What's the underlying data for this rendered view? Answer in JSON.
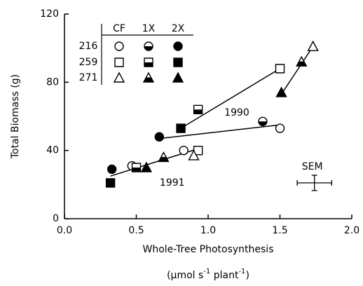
{
  "chart_data": {
    "type": "scatter",
    "y_label": "Total Biomass (g)",
    "x_label": "Whole-Tree Photosynthesis",
    "x_units": {
      "open": "(μmol s",
      "sup1": "-1",
      "mid": " plant",
      "sup2": "-1",
      "close": ")"
    },
    "xlim": [
      0,
      2.0
    ],
    "ylim": [
      0,
      120
    ],
    "xticks": [
      {
        "value": 0,
        "label": "0.0"
      },
      {
        "value": 0.5,
        "label": "0.5"
      },
      {
        "value": 1.0,
        "label": "1.0"
      },
      {
        "value": 1.5,
        "label": "1.5"
      },
      {
        "value": 2.0,
        "label": "2.0"
      }
    ],
    "yticks": [
      0,
      40,
      80,
      120
    ],
    "color": "#000000",
    "legend": {
      "columns": [
        "CF",
        "1X",
        "2X"
      ],
      "fills": [
        "open",
        "half",
        "filled"
      ],
      "corner": "top-left"
    },
    "rows": [
      {
        "name": "216",
        "shape": "circle",
        "series": [
          {
            "x": [
              0.47,
              0.83,
              1.5
            ],
            "y": [
              31,
              40,
              53
            ]
          },
          {
            "x": [
              1.38
            ],
            "y": [
              57
            ]
          },
          {
            "x": [
              0.33,
              0.66
            ],
            "y": [
              29,
              48
            ]
          }
        ]
      },
      {
        "name": "259",
        "shape": "square",
        "series": [
          {
            "x": [
              0.93,
              1.5
            ],
            "y": [
              40,
              88
            ]
          },
          {
            "x": [
              0.5,
              0.93
            ],
            "y": [
              30,
              64
            ]
          },
          {
            "x": [
              0.32,
              0.81
            ],
            "y": [
              21,
              53
            ]
          }
        ]
      },
      {
        "name": "271",
        "shape": "triangle",
        "series": [
          {
            "x": [
              0.9,
              1.73
            ],
            "y": [
              37,
              101
            ]
          },
          {
            "x": [
              0.69,
              1.65
            ],
            "y": [
              36,
              92
            ]
          },
          {
            "x": [
              0.57,
              1.51
            ],
            "y": [
              30,
              74
            ]
          }
        ]
      }
    ],
    "fit_lines": [
      {
        "x": [
          0.32,
          0.93
        ],
        "y": [
          25,
          41
        ]
      },
      {
        "x": [
          0.81,
          1.5
        ],
        "y": [
          53,
          88
        ]
      },
      {
        "x": [
          0.66,
          1.5
        ],
        "y": [
          47,
          55
        ]
      },
      {
        "x": [
          1.51,
          1.73
        ],
        "y": [
          73,
          101
        ]
      }
    ],
    "annotations": [
      {
        "text": "1990",
        "x": 1.2,
        "y": 62
      },
      {
        "text": "1991",
        "x": 0.75,
        "y": 21
      }
    ],
    "sem": {
      "label": "SEM",
      "x": 1.74,
      "y": 21,
      "xerr": 0.12,
      "yerr": 4.5
    }
  }
}
